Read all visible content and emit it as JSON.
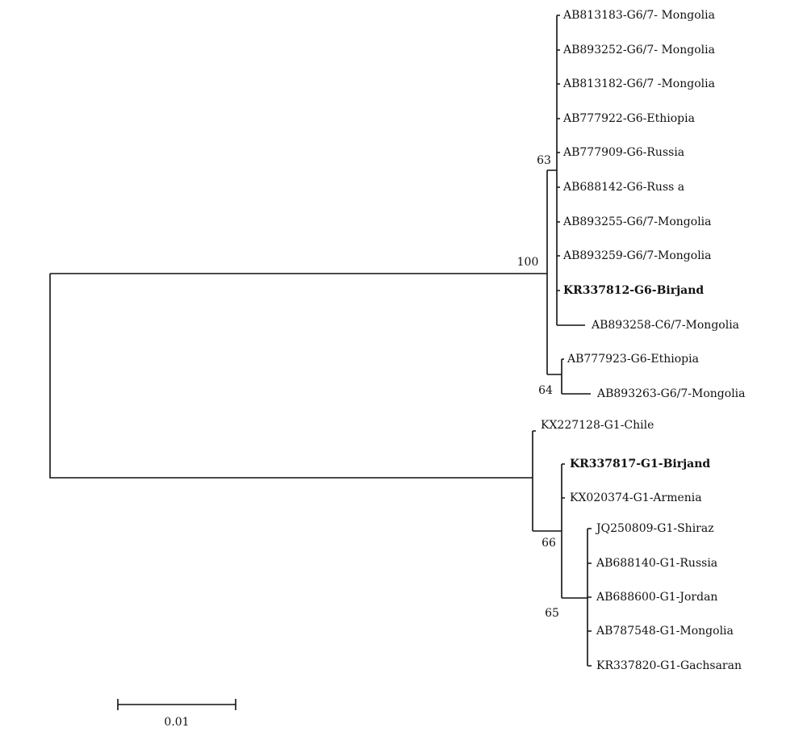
{
  "leaves": [
    {
      "label": "AB813183-G6/7- Mongolia"
    },
    {
      "label": "AB893252-G6/7- Mongolia"
    },
    {
      "label": "AB813182-G6/7 -Mongolia"
    },
    {
      "label": "AB777922-G6-Ethiopia"
    },
    {
      "label": "AB777909-G6-Russia"
    },
    {
      "label": "AB688142-G6-Russ a"
    },
    {
      "label": "AB893255-G6/7-Mongolia"
    },
    {
      "label": "AB893259-G6/7-Mongolia"
    },
    {
      "label": "KR337812-G6-Birjand",
      "color": "#e0141e"
    },
    {
      "label": "AB893258-C6/7-Mongolia"
    },
    {
      "label": "AB777923-G6-Ethiopia"
    },
    {
      "label": "AB893263-G6/7-Mongolia"
    },
    {
      "label": "KX227128-G1-Chile"
    },
    {
      "label": "KR337817-G1-Birjand",
      "color": "#e0141e"
    },
    {
      "label": "KX020374-G1-Armenia"
    },
    {
      "label": "JQ250809-G1-Shiraz"
    },
    {
      "label": "AB688140-G1-Russia"
    },
    {
      "label": "AB688600-G1-Jordan"
    },
    {
      "label": "AB787548-G1-Mongolia"
    },
    {
      "label": "KR337820-G1-Gachsaran"
    }
  ],
  "bootstrap": [
    63,
    100,
    64,
    66,
    65
  ],
  "scale_bar": {
    "label": "0.01"
  }
}
